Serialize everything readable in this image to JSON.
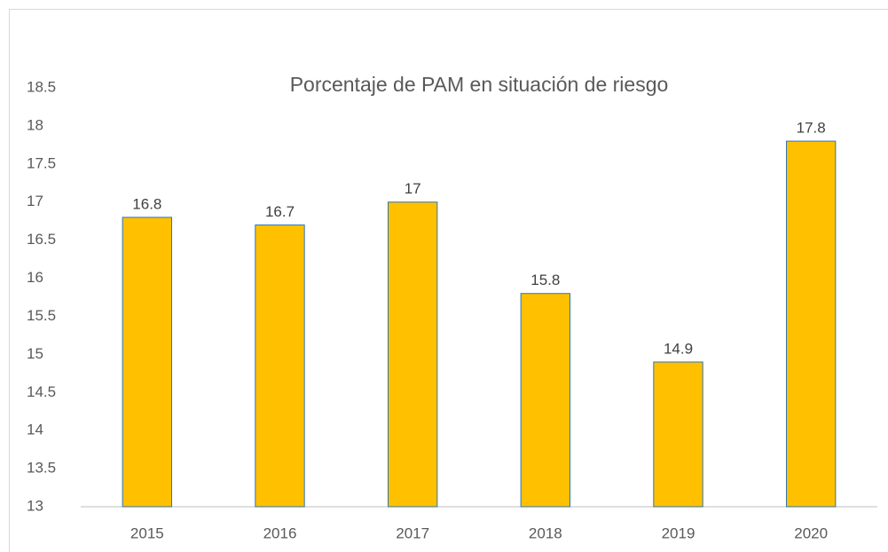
{
  "chart_data": {
    "type": "bar",
    "title": "Porcentaje de PAM en situación de riesgo",
    "categories": [
      "2015",
      "2016",
      "2017",
      "2018",
      "2019",
      "2020"
    ],
    "values": [
      16.8,
      16.7,
      17,
      15.8,
      14.9,
      17.8
    ],
    "color": "#FFC000",
    "edge_color": "#2E75B6",
    "ylim": [
      13,
      18.5
    ],
    "yticks": [
      13,
      13.5,
      14,
      14.5,
      15,
      15.5,
      16,
      16.5,
      17,
      17.5,
      18,
      18.5
    ],
    "grid": false
  }
}
